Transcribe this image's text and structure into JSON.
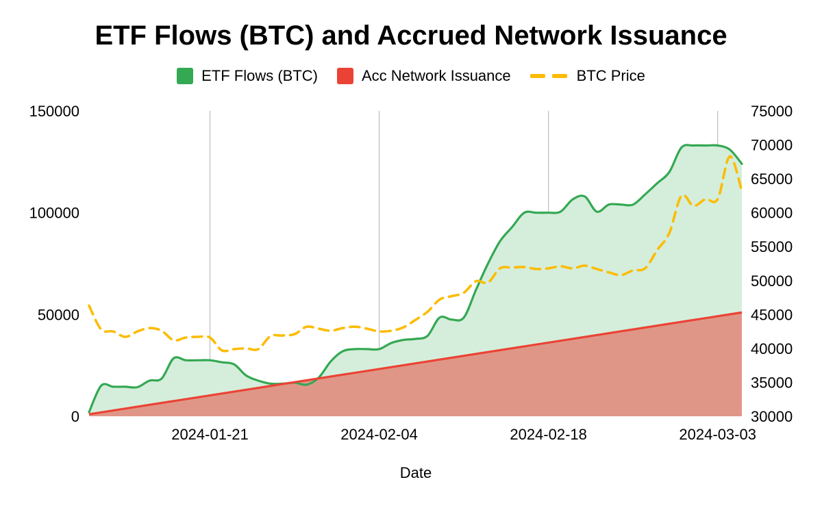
{
  "title": "ETF Flows (BTC) and Accrued Network Issuance",
  "colors": {
    "etf_line": "#34a853",
    "etf_fill": "#d5eedb",
    "issuance_line": "#ea4335",
    "issuance_fill": "#e09687",
    "price_line": "#fbbc04",
    "grid": "#bbbbbb"
  },
  "chart_data": {
    "type": "area",
    "title": "ETF Flows (BTC) and Accrued Network Issuance",
    "xlabel": "Date",
    "ylabel_left": "",
    "ylabel_right": "",
    "x_range": [
      "2024-01-11",
      "2024-03-05"
    ],
    "x_ticks": [
      "2024-01-21",
      "2024-02-04",
      "2024-02-18",
      "2024-03-03"
    ],
    "y_left_range": [
      0,
      150000
    ],
    "y_left_ticks": [
      "0",
      "50000",
      "100000",
      "150000"
    ],
    "y_right_range": [
      30000,
      75000
    ],
    "y_right_ticks": [
      "30000",
      "35000",
      "40000",
      "45000",
      "50000",
      "55000",
      "60000",
      "65000",
      "70000",
      "75000"
    ],
    "grid": "vertical lines at x ticks",
    "legend_position": "top",
    "series": [
      {
        "name": "ETF Flows (BTC)",
        "axis": "left",
        "style": "area",
        "x": [
          "2024-01-11",
          "2024-01-12",
          "2024-01-13",
          "2024-01-14",
          "2024-01-15",
          "2024-01-16",
          "2024-01-17",
          "2024-01-18",
          "2024-01-19",
          "2024-01-20",
          "2024-01-21",
          "2024-01-22",
          "2024-01-23",
          "2024-01-24",
          "2024-01-25",
          "2024-01-26",
          "2024-01-27",
          "2024-01-28",
          "2024-01-29",
          "2024-01-30",
          "2024-01-31",
          "2024-02-01",
          "2024-02-02",
          "2024-02-03",
          "2024-02-04",
          "2024-02-05",
          "2024-02-06",
          "2024-02-07",
          "2024-02-08",
          "2024-02-09",
          "2024-02-10",
          "2024-02-11",
          "2024-02-12",
          "2024-02-13",
          "2024-02-14",
          "2024-02-15",
          "2024-02-16",
          "2024-02-17",
          "2024-02-18",
          "2024-02-19",
          "2024-02-20",
          "2024-02-21",
          "2024-02-22",
          "2024-02-23",
          "2024-02-24",
          "2024-02-25",
          "2024-02-26",
          "2024-02-27",
          "2024-02-28",
          "2024-02-29",
          "2024-03-01",
          "2024-03-02",
          "2024-03-03",
          "2024-03-04",
          "2024-03-05"
        ],
        "values": [
          2000,
          15000,
          14500,
          14500,
          14300,
          17500,
          18500,
          28500,
          27500,
          27500,
          27500,
          26500,
          25500,
          20000,
          17500,
          16000,
          16000,
          16500,
          15500,
          19000,
          27000,
          32000,
          33000,
          33000,
          33000,
          36000,
          37500,
          38000,
          39500,
          48500,
          47500,
          48500,
          62000,
          75000,
          86000,
          93000,
          100000,
          100000,
          100000,
          100500,
          106500,
          108000,
          100500,
          104000,
          104000,
          104000,
          109000,
          114500,
          120000,
          132000,
          133000,
          133000,
          133000,
          131000,
          124000
        ],
        "values_note": ""
      },
      {
        "name": "Acc Network Issuance",
        "axis": "left",
        "style": "area",
        "x": [
          "2024-01-11",
          "2024-03-05"
        ],
        "values": [
          1000,
          51000
        ]
      },
      {
        "name": "BTC Price",
        "axis": "right",
        "style": "dashed-line",
        "x": [
          "2024-01-11",
          "2024-01-12",
          "2024-01-13",
          "2024-01-14",
          "2024-01-15",
          "2024-01-16",
          "2024-01-17",
          "2024-01-18",
          "2024-01-19",
          "2024-01-20",
          "2024-01-21",
          "2024-01-22",
          "2024-01-23",
          "2024-01-24",
          "2024-01-25",
          "2024-01-26",
          "2024-01-27",
          "2024-01-28",
          "2024-01-29",
          "2024-01-30",
          "2024-01-31",
          "2024-02-01",
          "2024-02-02",
          "2024-02-03",
          "2024-02-04",
          "2024-02-05",
          "2024-02-06",
          "2024-02-07",
          "2024-02-08",
          "2024-02-09",
          "2024-02-10",
          "2024-02-11",
          "2024-02-12",
          "2024-02-13",
          "2024-02-14",
          "2024-02-15",
          "2024-02-16",
          "2024-02-17",
          "2024-02-18",
          "2024-02-19",
          "2024-02-20",
          "2024-02-21",
          "2024-02-22",
          "2024-02-23",
          "2024-02-24",
          "2024-02-25",
          "2024-02-26",
          "2024-02-27",
          "2024-02-28",
          "2024-02-29",
          "2024-03-01",
          "2024-03-02",
          "2024-03-03",
          "2024-03-04",
          "2024-03-05"
        ],
        "values": [
          46300,
          42800,
          42500,
          41700,
          42500,
          43000,
          42600,
          41200,
          41600,
          41700,
          41600,
          39700,
          39900,
          40000,
          39900,
          41800,
          41900,
          42100,
          43200,
          42900,
          42600,
          43000,
          43200,
          42900,
          42500,
          42600,
          43100,
          44200,
          45400,
          47200,
          47700,
          48200,
          49900,
          49700,
          51800,
          51900,
          52000,
          51700,
          51800,
          52100,
          51800,
          52200,
          51700,
          51200,
          50800,
          51500,
          51800,
          54500,
          57000,
          62500,
          61000,
          62000,
          62000,
          68300,
          63200
        ]
      }
    ]
  },
  "legend": [
    {
      "label": "ETF Flows (BTC)",
      "kind": "swatch",
      "color": "#34a853"
    },
    {
      "label": "Acc Network Issuance",
      "kind": "swatch",
      "color": "#ea4335"
    },
    {
      "label": "BTC Price",
      "kind": "dash",
      "color": "#fbbc04"
    }
  ]
}
